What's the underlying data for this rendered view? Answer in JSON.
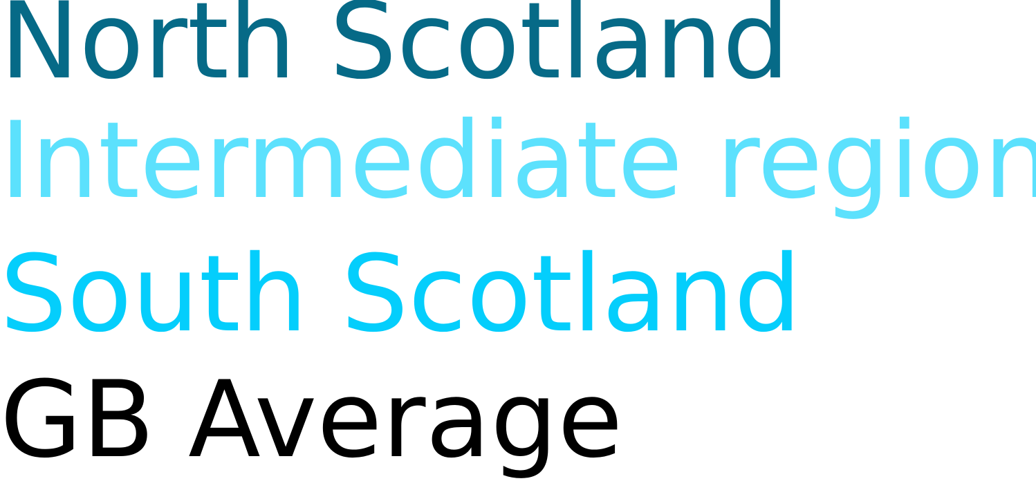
{
  "legend": {
    "entries": [
      {
        "label": "North Scotland",
        "color": "#066a87"
      },
      {
        "label": "Intermediate region",
        "color": "#5ce1fd"
      },
      {
        "label": "South Scotland",
        "color": "#04cefc"
      },
      {
        "label": "GB Average",
        "color": "#000000"
      }
    ]
  }
}
